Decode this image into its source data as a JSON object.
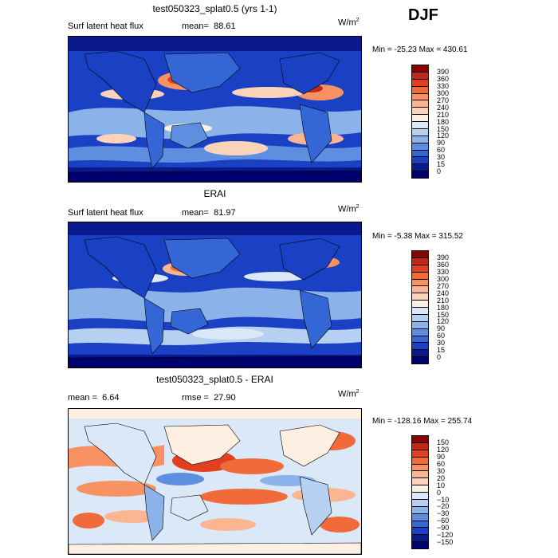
{
  "season": "DJF",
  "units_base": "W/m",
  "units_exp": "2",
  "panels": [
    {
      "title": "test050323_splat0.5 (yrs 1-1)",
      "left_label": "Surf latent heat flux",
      "stat_label": "mean=",
      "stat_value": "88.61",
      "minmax": "Min = -25.23 Max = 430.61",
      "levels": [
        "390",
        "360",
        "330",
        "300",
        "270",
        "240",
        "210",
        "180",
        "150",
        "120",
        "90",
        "60",
        "30",
        "15",
        "0"
      ],
      "colors": [
        "#8b0000",
        "#c0281a",
        "#e0401e",
        "#f06a3a",
        "#f89262",
        "#fbb590",
        "#fcd3b8",
        "#fdf0e3",
        "#dbe8f8",
        "#b6d0f2",
        "#8cb2ea",
        "#5e8ee0",
        "#3466d6",
        "#1a40c4",
        "#0a1a8c",
        "#00006e"
      ]
    },
    {
      "title": "ERAI",
      "left_label": "Surf latent heat flux",
      "stat_label": "mean=",
      "stat_value": "81.97",
      "minmax": "Min = -5.38 Max = 315.52",
      "levels": [
        "390",
        "360",
        "330",
        "300",
        "270",
        "240",
        "210",
        "180",
        "150",
        "120",
        "90",
        "60",
        "30",
        "15",
        "0"
      ],
      "colors": [
        "#8b0000",
        "#c0281a",
        "#e0401e",
        "#f06a3a",
        "#f89262",
        "#fbb590",
        "#fcd3b8",
        "#fdf0e3",
        "#dbe8f8",
        "#b6d0f2",
        "#8cb2ea",
        "#5e8ee0",
        "#3466d6",
        "#1a40c4",
        "#0a1a8c",
        "#00006e"
      ]
    },
    {
      "title": "test050323_splat0.5 - ERAI",
      "left_label": "mean =",
      "left_value": "6.64",
      "stat_label": "rmse =",
      "stat_value": "27.90",
      "minmax": "Min = -128.16 Max = 255.74",
      "levels": [
        "150",
        "120",
        "90",
        "60",
        "30",
        "20",
        "10",
        "0",
        "−10",
        "−20",
        "−30",
        "−60",
        "−90",
        "−120",
        "−150"
      ],
      "colors": [
        "#8b0000",
        "#c0281a",
        "#e0401e",
        "#f06a3a",
        "#f89262",
        "#fbb590",
        "#fcd3b8",
        "#fdf0e3",
        "#dbe8f8",
        "#b6d0f2",
        "#8cb2ea",
        "#5e8ee0",
        "#3466d6",
        "#1a40c4",
        "#0a1a8c",
        "#00006e"
      ]
    }
  ]
}
